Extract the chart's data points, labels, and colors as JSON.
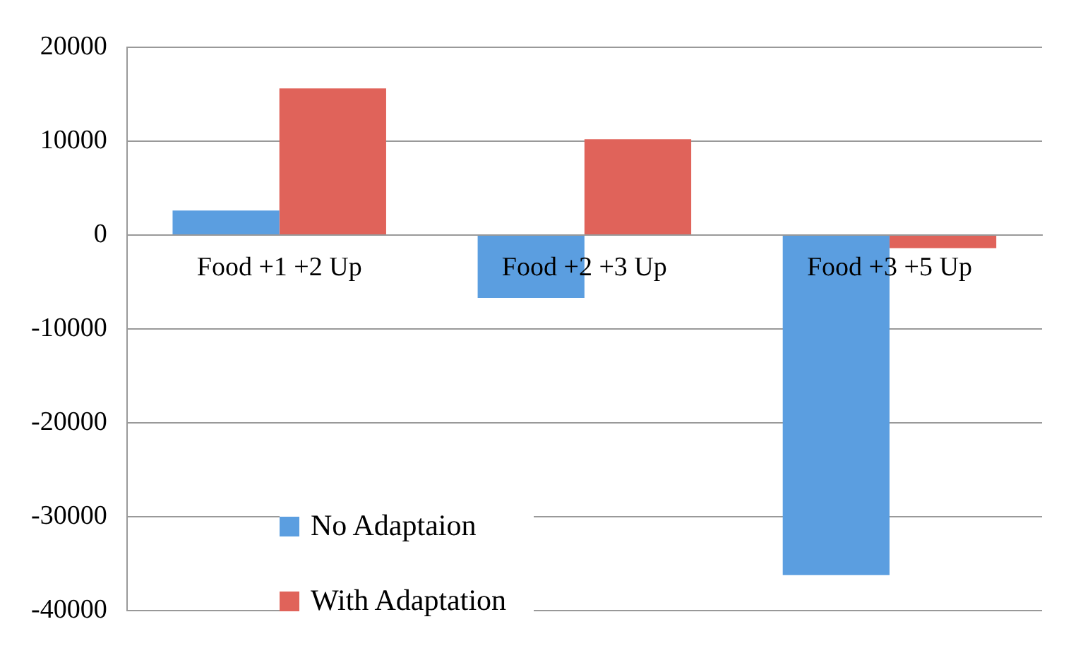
{
  "chart_data": {
    "type": "bar",
    "categories": [
      "Food +1 +2 Up",
      "Food +2 +3 Up",
      "Food +3 +5 Up"
    ],
    "series": [
      {
        "name": "No Adaptaion",
        "color": "#5b9ee0",
        "values": [
          2600,
          -6700,
          -36200
        ]
      },
      {
        "name": "With Adaptation",
        "color": "#e0635a",
        "values": [
          15600,
          10200,
          -1400
        ]
      }
    ],
    "ylim": [
      -40000,
      20000
    ],
    "yticks": [
      -40000,
      -30000,
      -20000,
      -10000,
      0,
      10000,
      20000
    ],
    "grid": "y",
    "legend": "bottom left"
  }
}
